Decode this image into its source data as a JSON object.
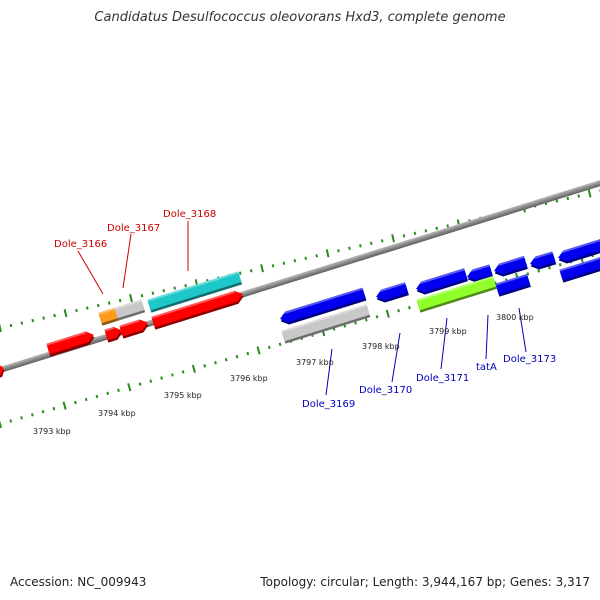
{
  "title": "Candidatus Desulfococcus oleovorans Hxd3, complete genome",
  "footer": {
    "accession": "Accession: NC_009943",
    "topology": "Topology: circular; Length: 3,944,167 bp; Genes: 3,317"
  },
  "colors": {
    "backbone": "#8c8c8c",
    "tick": "#2a8a1e",
    "label_plus": "#cc0000",
    "label_minus": "#0000bb",
    "gene_red": "#ff0000",
    "gene_blue": "#0000ee",
    "gene_cyan": "#1ec8c8",
    "gene_gray": "#c8c8c8",
    "gene_orange": "#ff9a1a",
    "gene_green": "#90ff2a"
  },
  "scale_labels": [
    "3793 kbp",
    "3794 kbp",
    "3795 kbp",
    "3796 kbp",
    "3797 kbp",
    "3798 kbp",
    "3799 kbp",
    "3800 kbp"
  ],
  "gene_labels_top": [
    "Dole_3166",
    "Dole_3167",
    "Dole_3168"
  ],
  "gene_labels_bottom": [
    "Dole_3169",
    "Dole_3170",
    "Dole_3171",
    "tatA",
    "Dole_3173"
  ]
}
